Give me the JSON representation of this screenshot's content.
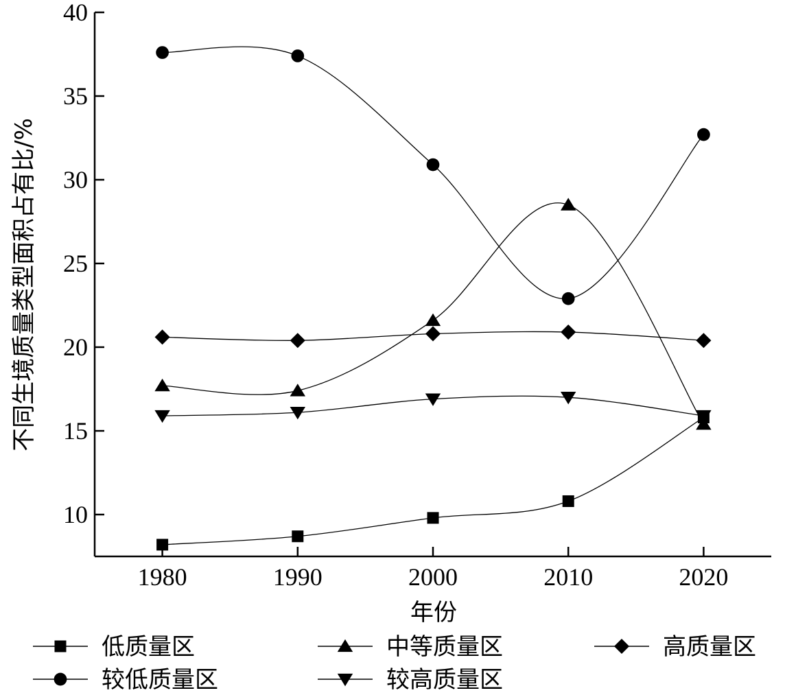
{
  "chart_data": {
    "type": "line",
    "xlabel": "年份",
    "ylabel": "不同生境质量类型面积占有比/%",
    "x": [
      1980,
      1990,
      2000,
      2010,
      2020
    ],
    "xlim": [
      1975,
      2025
    ],
    "ylim": [
      7.5,
      40
    ],
    "yticks": [
      10,
      15,
      20,
      25,
      30,
      35,
      40
    ],
    "smooth": true,
    "grid": false,
    "legend_position": "bottom",
    "series": [
      {
        "name": "低质量区",
        "marker": "square",
        "values": [
          8.2,
          8.7,
          9.8,
          10.8,
          15.8
        ]
      },
      {
        "name": "中等质量区",
        "marker": "triangle-up",
        "values": [
          17.7,
          17.4,
          21.6,
          28.5,
          15.4
        ]
      },
      {
        "name": "高质量区",
        "marker": "diamond",
        "values": [
          20.6,
          20.4,
          20.8,
          20.9,
          20.4
        ]
      },
      {
        "name": "较低质量区",
        "marker": "circle",
        "values": [
          37.6,
          37.4,
          30.9,
          22.9,
          32.7
        ]
      },
      {
        "name": "较高质量区",
        "marker": "triangle-down",
        "values": [
          15.9,
          16.1,
          16.9,
          17.0,
          15.9
        ]
      }
    ],
    "colors": {
      "line": "#000000",
      "marker": "#000000"
    }
  }
}
